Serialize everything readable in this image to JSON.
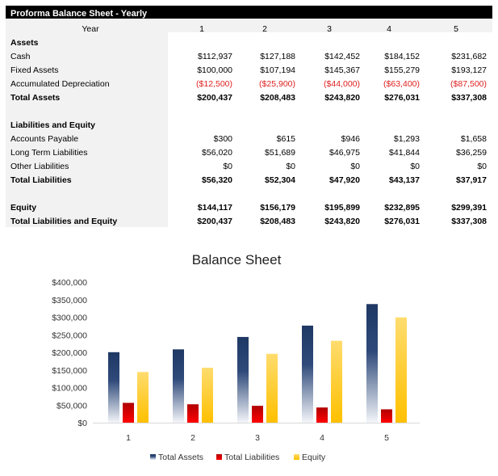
{
  "table": {
    "title": "Proforma Balance Sheet - Yearly",
    "year_label": "Year",
    "years": [
      "1",
      "2",
      "3",
      "4",
      "5"
    ],
    "rows": [
      {
        "label": "Assets",
        "bold": true,
        "values": []
      },
      {
        "label": "Cash",
        "values": [
          "$112,937",
          "$127,188",
          "$142,452",
          "$184,152",
          "$231,682"
        ]
      },
      {
        "label": "Fixed Assets",
        "values": [
          "$100,000",
          "$107,194",
          "$145,367",
          "$155,279",
          "$193,127"
        ]
      },
      {
        "label": "Accumulated Depreciation",
        "negative": true,
        "values": [
          "($12,500)",
          "($25,900)",
          "($44,000)",
          "($63,400)",
          "($87,500)"
        ]
      },
      {
        "label": "Total Assets",
        "bold": true,
        "values": [
          "$200,437",
          "$208,483",
          "$243,820",
          "$276,031",
          "$337,308"
        ]
      },
      {
        "label": "",
        "values": []
      },
      {
        "label": "Liabilities and Equity",
        "bold": true,
        "values": []
      },
      {
        "label": "Accounts Payable",
        "values": [
          "$300",
          "$615",
          "$946",
          "$1,293",
          "$1,658"
        ]
      },
      {
        "label": "Long Term Liabilities",
        "values": [
          "$56,020",
          "$51,689",
          "$46,975",
          "$41,844",
          "$36,259"
        ]
      },
      {
        "label": "Other Liabilities",
        "values": [
          "$0",
          "$0",
          "$0",
          "$0",
          "$0"
        ]
      },
      {
        "label": "Total Liabilities",
        "bold": true,
        "values": [
          "$56,320",
          "$52,304",
          "$47,920",
          "$43,137",
          "$37,917"
        ]
      },
      {
        "label": "",
        "values": []
      },
      {
        "label": "Equity",
        "bold": true,
        "values": [
          "$144,117",
          "$156,179",
          "$195,899",
          "$232,895",
          "$299,391"
        ]
      },
      {
        "label": "Total Liabilities and Equity",
        "bold": true,
        "values": [
          "$200,437",
          "$208,483",
          "$243,820",
          "$276,031",
          "$337,308"
        ]
      }
    ]
  },
  "chart_data": {
    "type": "bar",
    "title": "Balance Sheet",
    "categories": [
      "1",
      "2",
      "3",
      "4",
      "5"
    ],
    "ylim": [
      0,
      400000
    ],
    "yticks": [
      "$0",
      "$50,000",
      "$100,000",
      "$150,000",
      "$200,000",
      "$250,000",
      "$300,000",
      "$350,000",
      "$400,000"
    ],
    "legend_position": "bottom",
    "grid": false,
    "series": [
      {
        "name": "Total Assets",
        "values": [
          200437,
          208483,
          243820,
          276031,
          337308
        ],
        "color": "#1f3864"
      },
      {
        "name": "Total Liabilities",
        "values": [
          56320,
          52304,
          47920,
          43137,
          37917
        ],
        "color": "#e00000"
      },
      {
        "name": "Equity",
        "values": [
          144117,
          156179,
          195899,
          232895,
          299391
        ],
        "color": "#ffc000"
      }
    ]
  }
}
